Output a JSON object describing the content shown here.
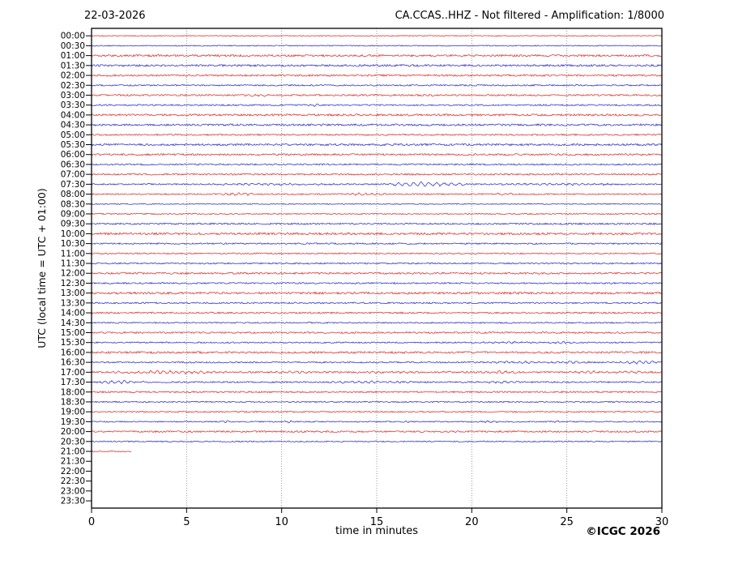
{
  "header": {
    "date": "22-03-2026",
    "title": "CA.CCAS..HHZ - Not filtered - Amplification: 1/8000"
  },
  "axes": {
    "y_label": "UTC (local time = UTC + 01:00)",
    "x_label": "time in minutes",
    "x_ticks": [
      0,
      5,
      10,
      15,
      20,
      25,
      30
    ],
    "x_range": [
      0,
      30
    ]
  },
  "footer": {
    "copyright": "©ICGC 2026"
  },
  "colors": {
    "trace_red": "#dd2222",
    "trace_blue": "#2222cc",
    "grid": "#808080",
    "axis": "#000000"
  },
  "chart_data": {
    "type": "line",
    "subtype": "seismogram-helicorder",
    "title": "CA.CCAS..HHZ - Not filtered - Amplification: 1/8000",
    "date": "22-03-2026",
    "station": "CA.CCAS..HHZ",
    "filter": "Not filtered",
    "amplification": "1/8000",
    "xlabel": "time in minutes",
    "ylabel": "UTC (local time = UTC + 01:00)",
    "xlim": [
      0,
      30
    ],
    "x_ticks": [
      0,
      5,
      10,
      15,
      20,
      25,
      30
    ],
    "grid": "vertical dotted gridlines every 5 minutes",
    "row_duration_minutes": 30,
    "data_ends_at": "21:02 UTC (rows 21:30-23:30 empty)",
    "traces": [
      {
        "label": "00:00",
        "color": "red",
        "noise": 0.5,
        "end": 30,
        "events": []
      },
      {
        "label": "00:30",
        "color": "blue",
        "noise": 0.6,
        "end": 30,
        "events": []
      },
      {
        "label": "01:00",
        "color": "red",
        "noise": 1.2,
        "end": 30,
        "events": []
      },
      {
        "label": "01:30",
        "color": "blue",
        "noise": 1.2,
        "end": 30,
        "events": []
      },
      {
        "label": "02:00",
        "color": "red",
        "noise": 1.1,
        "end": 30,
        "events": []
      },
      {
        "label": "02:30",
        "color": "blue",
        "noise": 0.9,
        "end": 30,
        "events": []
      },
      {
        "label": "03:00",
        "color": "red",
        "noise": 1.0,
        "end": 30,
        "events": [
          [
            8,
            9.5,
            1.3,
            3
          ]
        ]
      },
      {
        "label": "03:30",
        "color": "blue",
        "noise": 0.9,
        "end": 30,
        "events": [
          [
            11,
            12.2,
            1.2,
            3
          ]
        ]
      },
      {
        "label": "04:00",
        "color": "red",
        "noise": 1.2,
        "end": 30,
        "events": []
      },
      {
        "label": "04:30",
        "color": "blue",
        "noise": 1.2,
        "end": 30,
        "events": []
      },
      {
        "label": "05:00",
        "color": "red",
        "noise": 0.9,
        "end": 30,
        "events": []
      },
      {
        "label": "05:30",
        "color": "blue",
        "noise": 1.2,
        "end": 30,
        "events": []
      },
      {
        "label": "06:00",
        "color": "red",
        "noise": 1.1,
        "end": 30,
        "events": []
      },
      {
        "label": "06:30",
        "color": "blue",
        "noise": 0.9,
        "end": 30,
        "events": []
      },
      {
        "label": "07:00",
        "color": "red",
        "noise": 1.0,
        "end": 30,
        "events": []
      },
      {
        "label": "07:30",
        "color": "blue",
        "noise": 0.8,
        "end": 30,
        "events": [
          [
            5,
            15,
            1.0,
            3
          ],
          [
            15,
            20,
            2.6,
            2.5
          ],
          [
            20,
            30,
            0.9,
            3
          ]
        ]
      },
      {
        "label": "08:00",
        "color": "red",
        "noise": 0.8,
        "end": 30,
        "events": [
          [
            6.5,
            9,
            1.4,
            3
          ],
          [
            13,
            16,
            1.3,
            3
          ],
          [
            21,
            22.5,
            1.0,
            3
          ]
        ]
      },
      {
        "label": "08:30",
        "color": "blue",
        "noise": 0.6,
        "end": 30,
        "events": []
      },
      {
        "label": "09:00",
        "color": "red",
        "noise": 0.7,
        "end": 30,
        "events": []
      },
      {
        "label": "09:30",
        "color": "blue",
        "noise": 1.0,
        "end": 30,
        "events": []
      },
      {
        "label": "10:00",
        "color": "red",
        "noise": 1.3,
        "end": 30,
        "events": []
      },
      {
        "label": "10:30",
        "color": "blue",
        "noise": 0.9,
        "end": 30,
        "events": []
      },
      {
        "label": "11:00",
        "color": "red",
        "noise": 0.8,
        "end": 30,
        "events": []
      },
      {
        "label": "11:30",
        "color": "blue",
        "noise": 0.9,
        "end": 30,
        "events": []
      },
      {
        "label": "12:00",
        "color": "red",
        "noise": 1.1,
        "end": 30,
        "events": []
      },
      {
        "label": "12:30",
        "color": "blue",
        "noise": 0.9,
        "end": 30,
        "events": []
      },
      {
        "label": "13:00",
        "color": "red",
        "noise": 1.3,
        "end": 30,
        "events": []
      },
      {
        "label": "13:30",
        "color": "blue",
        "noise": 0.9,
        "end": 30,
        "events": []
      },
      {
        "label": "14:00",
        "color": "red",
        "noise": 1.0,
        "end": 30,
        "events": []
      },
      {
        "label": "14:30",
        "color": "blue",
        "noise": 0.8,
        "end": 30,
        "events": []
      },
      {
        "label": "15:00",
        "color": "red",
        "noise": 1.0,
        "end": 30,
        "events": []
      },
      {
        "label": "15:30",
        "color": "blue",
        "noise": 0.8,
        "end": 30,
        "events": [
          [
            20,
            24,
            0.9,
            3
          ],
          [
            24.2,
            25.4,
            1.7,
            3.5
          ]
        ]
      },
      {
        "label": "16:00",
        "color": "red",
        "noise": 1.2,
        "end": 30,
        "events": []
      },
      {
        "label": "16:30",
        "color": "blue",
        "noise": 0.9,
        "end": 30,
        "events": [
          [
            20,
            27,
            1.1,
            3
          ],
          [
            27.5,
            30,
            1.8,
            3
          ]
        ]
      },
      {
        "label": "17:00",
        "color": "red",
        "noise": 1.0,
        "end": 30,
        "events": [
          [
            0,
            8,
            1.8,
            3
          ],
          [
            9,
            12,
            1.2,
            3
          ],
          [
            13,
            20,
            0.9,
            3
          ],
          [
            20,
            23,
            1.4,
            3
          ],
          [
            24,
            30,
            1.2,
            3
          ]
        ]
      },
      {
        "label": "17:30",
        "color": "blue",
        "noise": 0.9,
        "end": 30,
        "events": [
          [
            0,
            3,
            2.0,
            3
          ],
          [
            12,
            17,
            1.3,
            3
          ],
          [
            20,
            23,
            1.0,
            3
          ]
        ]
      },
      {
        "label": "18:00",
        "color": "red",
        "noise": 0.9,
        "end": 30,
        "events": []
      },
      {
        "label": "18:30",
        "color": "blue",
        "noise": 0.8,
        "end": 30,
        "events": []
      },
      {
        "label": "19:00",
        "color": "red",
        "noise": 0.8,
        "end": 30,
        "events": []
      },
      {
        "label": "19:30",
        "color": "blue",
        "noise": 0.7,
        "end": 30,
        "events": [
          [
            6.5,
            7.5,
            1.1,
            3
          ],
          [
            10,
            11,
            1.0,
            3
          ],
          [
            16,
            17,
            0.9,
            3
          ],
          [
            20,
            22,
            1.0,
            3
          ],
          [
            24,
            25,
            1.0,
            3
          ]
        ]
      },
      {
        "label": "20:00",
        "color": "red",
        "noise": 1.0,
        "end": 30,
        "events": []
      },
      {
        "label": "20:30",
        "color": "blue",
        "noise": 0.7,
        "end": 30,
        "events": []
      },
      {
        "label": "21:00",
        "color": "red",
        "noise": 0.6,
        "end": 2.1,
        "events": []
      },
      {
        "label": "21:30",
        "color": "blue",
        "noise": 0,
        "end": 0,
        "events": []
      },
      {
        "label": "22:00",
        "color": "red",
        "noise": 0,
        "end": 0,
        "events": []
      },
      {
        "label": "22:30",
        "color": "blue",
        "noise": 0,
        "end": 0,
        "events": []
      },
      {
        "label": "23:00",
        "color": "red",
        "noise": 0,
        "end": 0,
        "events": []
      },
      {
        "label": "23:30",
        "color": "blue",
        "noise": 0,
        "end": 0,
        "events": []
      }
    ]
  }
}
